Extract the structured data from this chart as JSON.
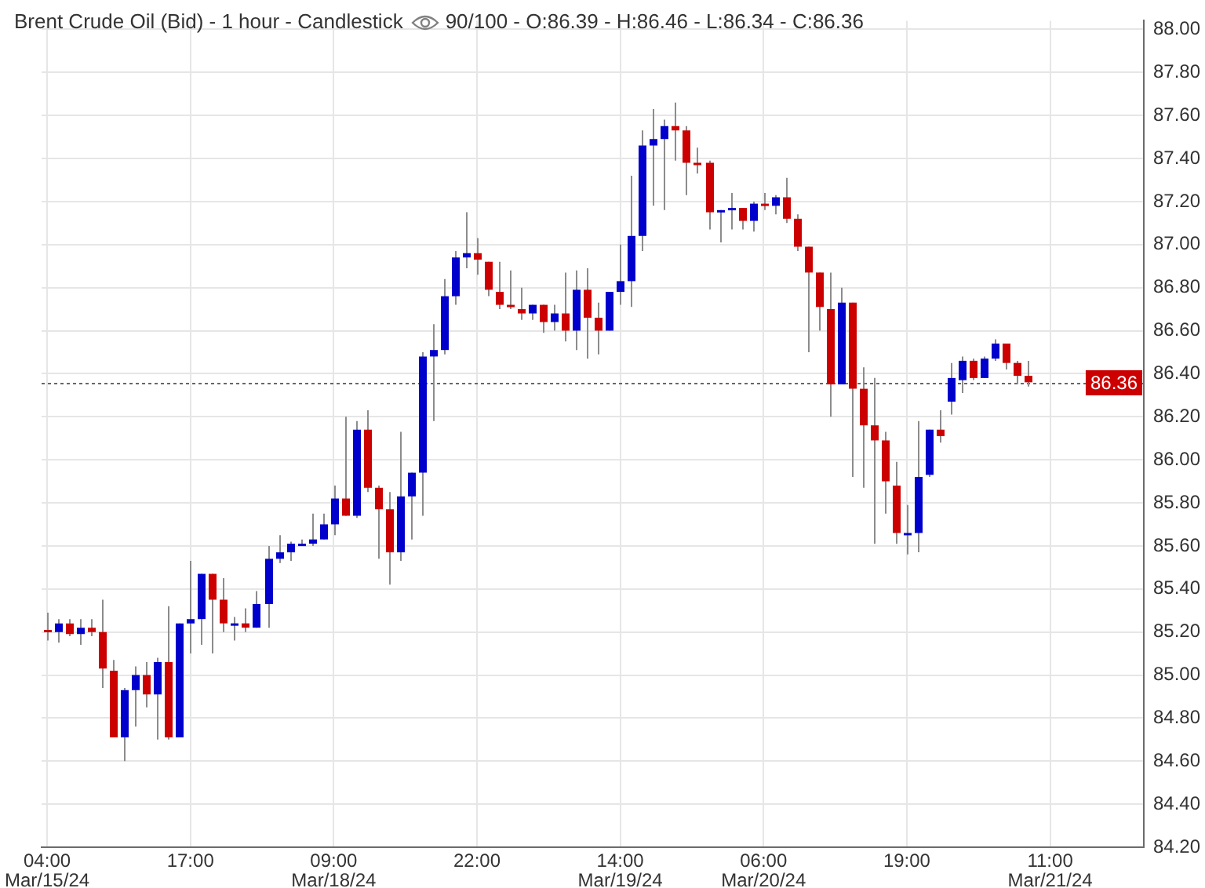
{
  "chart_data": {
    "type": "candlestick",
    "title": "Brent Crude Oil (Bid) - 1 hour - Candlestick",
    "subtitle": "90/100 - O:86.39 - H:86.46 - L:86.34 - C:86.36",
    "categories": [
      "04:00\nMar/15/24",
      null,
      null,
      null,
      null,
      null,
      null,
      null,
      null,
      null,
      null,
      null,
      null,
      "17:00",
      null,
      null,
      null,
      null,
      null,
      null,
      null,
      null,
      null,
      null,
      null,
      null,
      "09:00\nMar/18/24",
      null,
      null,
      null,
      null,
      null,
      null,
      null,
      null,
      null,
      null,
      null,
      null,
      "22:00",
      null,
      null,
      null,
      null,
      null,
      null,
      null,
      null,
      null,
      null,
      null,
      null,
      "14:00\nMar/19/24",
      null,
      null,
      null,
      null,
      null,
      null,
      null,
      null,
      null,
      null,
      null,
      null,
      "06:00\nMar/20/24",
      null,
      null,
      null,
      null,
      null,
      null,
      null,
      null,
      null,
      null,
      null,
      null,
      "19:00",
      null,
      null,
      null,
      null,
      null,
      null,
      null,
      null,
      null,
      null,
      null,
      null,
      "11:00\nMar/21/24",
      null,
      null,
      null,
      null,
      null,
      null,
      null,
      null
    ],
    "ohlc": [
      [
        85.21,
        85.29,
        85.16,
        85.2
      ],
      [
        85.2,
        85.26,
        85.15,
        85.24
      ],
      [
        85.24,
        85.26,
        85.18,
        85.19
      ],
      [
        85.19,
        85.26,
        85.14,
        85.22
      ],
      [
        85.22,
        85.26,
        85.18,
        85.2
      ],
      [
        85.2,
        85.35,
        84.94,
        85.03
      ],
      [
        85.02,
        85.07,
        84.71,
        84.71
      ],
      [
        84.71,
        84.94,
        84.6,
        84.93
      ],
      [
        84.93,
        85.04,
        84.76,
        85.0
      ],
      [
        85.0,
        85.06,
        84.85,
        84.91
      ],
      [
        84.91,
        85.08,
        84.7,
        85.06
      ],
      [
        85.06,
        85.32,
        84.7,
        84.71
      ],
      [
        84.71,
        85.24,
        84.71,
        85.24
      ],
      [
        85.24,
        85.53,
        85.1,
        85.26
      ],
      [
        85.26,
        85.47,
        85.14,
        85.47
      ],
      [
        85.47,
        85.47,
        85.1,
        85.35
      ],
      [
        85.35,
        85.45,
        85.2,
        85.24
      ],
      [
        85.23,
        85.27,
        85.16,
        85.24
      ],
      [
        85.24,
        85.31,
        85.2,
        85.22
      ],
      [
        85.22,
        85.39,
        85.22,
        85.33
      ],
      [
        85.33,
        85.6,
        85.22,
        85.54
      ],
      [
        85.54,
        85.65,
        85.52,
        85.57
      ],
      [
        85.57,
        85.62,
        85.53,
        85.61
      ],
      [
        85.6,
        85.63,
        85.6,
        85.61
      ],
      [
        85.61,
        85.75,
        85.6,
        85.63
      ],
      [
        85.63,
        85.75,
        85.63,
        85.7
      ],
      [
        85.7,
        85.88,
        85.65,
        85.82
      ],
      [
        85.82,
        86.2,
        85.74,
        85.74
      ],
      [
        85.74,
        86.18,
        85.73,
        86.14
      ],
      [
        86.14,
        86.23,
        85.85,
        85.87
      ],
      [
        85.87,
        85.88,
        85.54,
        85.77
      ],
      [
        85.77,
        85.85,
        85.42,
        85.57
      ],
      [
        85.57,
        86.13,
        85.53,
        85.83
      ],
      [
        85.83,
        85.94,
        85.63,
        85.94
      ],
      [
        85.94,
        86.5,
        85.74,
        86.48
      ],
      [
        86.48,
        86.63,
        86.18,
        86.51
      ],
      [
        86.51,
        86.84,
        86.49,
        86.76
      ],
      [
        86.76,
        86.97,
        86.72,
        86.94
      ],
      [
        86.94,
        87.15,
        86.89,
        86.96
      ],
      [
        86.96,
        87.03,
        86.86,
        86.93
      ],
      [
        86.92,
        86.92,
        86.76,
        86.79
      ],
      [
        86.78,
        86.92,
        86.7,
        86.72
      ],
      [
        86.72,
        86.88,
        86.7,
        86.71
      ],
      [
        86.7,
        86.8,
        86.65,
        86.68
      ],
      [
        86.68,
        86.72,
        86.65,
        86.72
      ],
      [
        86.72,
        86.72,
        86.59,
        86.64
      ],
      [
        86.64,
        86.72,
        86.6,
        86.68
      ],
      [
        86.68,
        86.87,
        86.55,
        86.6
      ],
      [
        86.6,
        86.88,
        86.51,
        86.79
      ],
      [
        86.79,
        86.89,
        86.47,
        86.66
      ],
      [
        86.66,
        86.73,
        86.49,
        86.6
      ],
      [
        86.6,
        86.78,
        86.6,
        86.78
      ],
      [
        86.78,
        87.0,
        86.72,
        86.83
      ],
      [
        86.83,
        87.32,
        86.71,
        87.04
      ],
      [
        87.04,
        87.53,
        86.97,
        87.46
      ],
      [
        87.46,
        87.63,
        87.18,
        87.49
      ],
      [
        87.49,
        87.58,
        87.16,
        87.55
      ],
      [
        87.55,
        87.66,
        87.39,
        87.53
      ],
      [
        87.53,
        87.55,
        87.23,
        87.38
      ],
      [
        87.38,
        87.45,
        87.33,
        87.37
      ],
      [
        87.38,
        87.39,
        87.07,
        87.15
      ],
      [
        87.15,
        87.16,
        87.01,
        87.16
      ],
      [
        87.16,
        87.24,
        87.07,
        87.17
      ],
      [
        87.17,
        87.17,
        87.07,
        87.11
      ],
      [
        87.11,
        87.2,
        87.06,
        87.19
      ],
      [
        87.19,
        87.24,
        87.16,
        87.18
      ],
      [
        87.18,
        87.23,
        87.14,
        87.22
      ],
      [
        87.22,
        87.31,
        87.1,
        87.12
      ],
      [
        87.12,
        87.14,
        86.97,
        86.99
      ],
      [
        86.99,
        86.99,
        86.5,
        86.87
      ],
      [
        86.87,
        86.87,
        86.6,
        86.71
      ],
      [
        86.7,
        86.87,
        86.2,
        86.35
      ],
      [
        86.35,
        86.8,
        86.35,
        86.73
      ],
      [
        86.73,
        86.73,
        85.92,
        86.33
      ],
      [
        86.33,
        86.43,
        85.87,
        86.16
      ],
      [
        86.16,
        86.38,
        85.61,
        86.09
      ],
      [
        86.09,
        86.13,
        85.75,
        85.9
      ],
      [
        85.88,
        85.99,
        85.61,
        85.66
      ],
      [
        85.66,
        85.79,
        85.56,
        85.66
      ],
      [
        85.66,
        86.18,
        85.57,
        85.92
      ],
      [
        85.93,
        86.14,
        85.92,
        86.14
      ],
      [
        86.14,
        86.23,
        86.08,
        86.11
      ],
      [
        86.27,
        86.45,
        86.21,
        86.38
      ],
      [
        86.37,
        86.48,
        86.31,
        86.46
      ],
      [
        86.46,
        86.47,
        86.37,
        86.38
      ],
      [
        86.38,
        86.48,
        86.38,
        86.47
      ],
      [
        86.47,
        86.56,
        86.46,
        86.54
      ],
      [
        86.54,
        86.54,
        86.42,
        86.45
      ],
      [
        86.45,
        86.46,
        86.35,
        86.39
      ],
      [
        86.39,
        86.46,
        86.34,
        86.36
      ],
      null,
      null,
      null,
      null,
      null,
      null,
      null,
      null,
      null,
      null
    ],
    "colors": [
      "#cc0000",
      "#0000cc",
      "#cc0000",
      "#0000cc",
      "#cc0000",
      "#cc0000",
      "#cc0000",
      "#0000cc",
      "#0000cc",
      "#cc0000",
      "#0000cc",
      "#cc0000",
      "#0000cc",
      "#0000cc",
      "#0000cc",
      "#cc0000",
      "#cc0000",
      "#0000cc",
      "#cc0000",
      "#0000cc",
      "#0000cc",
      "#0000cc",
      "#0000cc",
      "#0000cc",
      "#0000cc",
      "#0000cc",
      "#0000cc",
      "#cc0000",
      "#0000cc",
      "#cc0000",
      "#cc0000",
      "#cc0000",
      "#0000cc",
      "#0000cc",
      "#0000cc",
      "#0000cc",
      "#0000cc",
      "#0000cc",
      "#0000cc",
      "#cc0000",
      "#cc0000",
      "#cc0000",
      "#cc0000",
      "#cc0000",
      "#0000cc",
      "#cc0000",
      "#0000cc",
      "#cc0000",
      "#0000cc",
      "#cc0000",
      "#cc0000",
      "#0000cc",
      "#0000cc",
      "#0000cc",
      "#0000cc",
      "#0000cc",
      "#0000cc",
      "#cc0000",
      "#cc0000",
      "#cc0000",
      "#cc0000",
      "#0000cc",
      "#0000cc",
      "#cc0000",
      "#0000cc",
      "#cc0000",
      "#0000cc",
      "#cc0000",
      "#cc0000",
      "#cc0000",
      "#cc0000",
      "#cc0000",
      "#0000cc",
      "#cc0000",
      "#cc0000",
      "#cc0000",
      "#cc0000",
      "#cc0000",
      "#0000cc",
      "#0000cc",
      "#0000cc",
      "#cc0000",
      "#0000cc",
      "#0000cc",
      "#cc0000",
      "#0000cc",
      "#0000cc",
      "#cc0000",
      "#cc0000",
      "#cc0000",
      null,
      null,
      null,
      null,
      null,
      null,
      null,
      null,
      null,
      null
    ],
    "ylim": [
      84.2,
      88.04
    ],
    "yticks": [
      {
        "value": 84.2,
        "label": "84.20"
      },
      {
        "value": 84.4,
        "label": "84.40"
      },
      {
        "value": 84.6,
        "label": "84.60"
      },
      {
        "value": 84.8,
        "label": "84.80"
      },
      {
        "value": 85.0,
        "label": "85.00"
      },
      {
        "value": 85.2,
        "label": "85.20"
      },
      {
        "value": 85.4,
        "label": "85.40"
      },
      {
        "value": 85.6,
        "label": "85.60"
      },
      {
        "value": 85.8,
        "label": "85.80"
      },
      {
        "value": 86.0,
        "label": "86.00"
      },
      {
        "value": 86.2,
        "label": "86.20"
      },
      {
        "value": 86.4,
        "label": "86.40"
      },
      {
        "value": 86.6,
        "label": "86.60"
      },
      {
        "value": 86.8,
        "label": "86.80"
      },
      {
        "value": 87.0,
        "label": "87.00"
      },
      {
        "value": 87.2,
        "label": "87.20"
      },
      {
        "value": 87.4,
        "label": "87.40"
      },
      {
        "value": 87.6,
        "label": "87.60"
      },
      {
        "value": 87.8,
        "label": "87.80"
      },
      {
        "value": 88.0,
        "label": "88.00"
      }
    ],
    "grid": true,
    "ref_lines": [
      {
        "axis": "y",
        "value": 86.36,
        "label": "86.36",
        "color": "#666666",
        "line_style": "dotted"
      }
    ]
  }
}
